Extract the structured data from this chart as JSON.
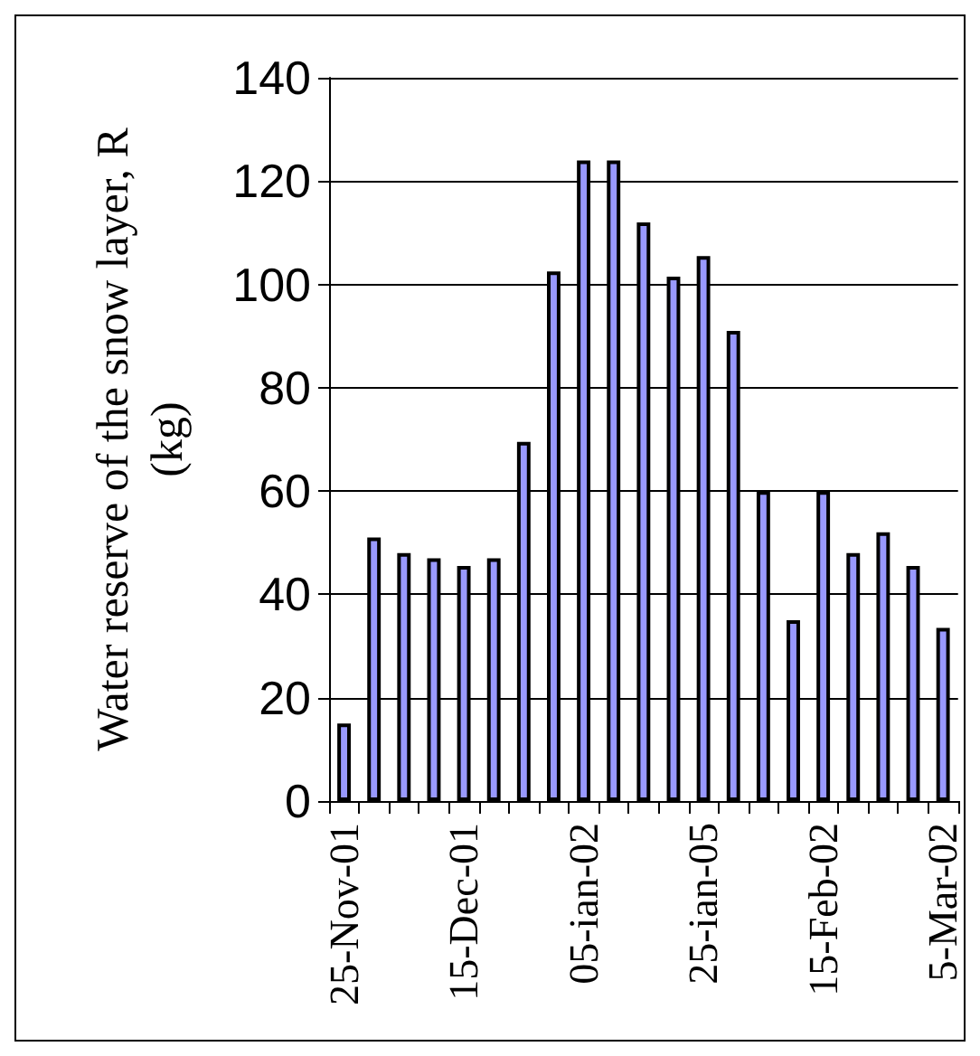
{
  "chart_data": {
    "type": "bar",
    "ylabel": "Water reserve of the snow layer, R (kg)",
    "categories": [
      "25-Nov-01",
      null,
      null,
      null,
      "15-Dec-01",
      null,
      null,
      null,
      "05-ian-02",
      null,
      null,
      null,
      "25-ian-05",
      null,
      null,
      null,
      "15-Feb-02",
      null,
      null,
      null,
      "5-Mar-02"
    ],
    "values": [
      15,
      51,
      48,
      47,
      45.5,
      47,
      69.5,
      102.5,
      124,
      124,
      112,
      101.5,
      105.5,
      91,
      60,
      35,
      60,
      48,
      52,
      45.5,
      33.5
    ],
    "color": "#9999ff",
    "ylim": [
      0,
      140
    ],
    "yticks": [
      0,
      20,
      40,
      60,
      80,
      100,
      120,
      140
    ],
    "grid": "y"
  }
}
